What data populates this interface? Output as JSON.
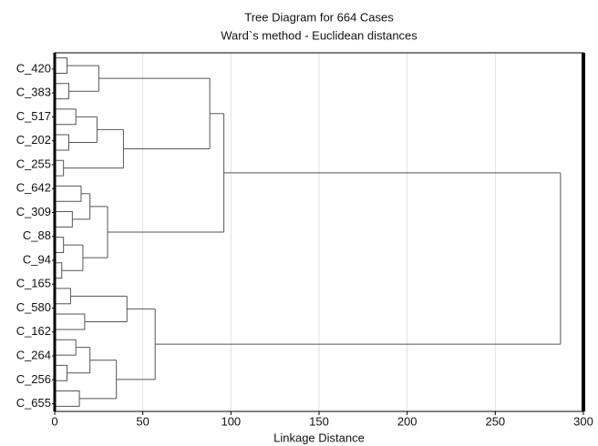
{
  "chart_data": {
    "type": "dendrogram",
    "title": "Tree Diagram for 664 Cases",
    "subtitle": "Ward`s method - Euclidean distances",
    "x_label": "Linkage Distance",
    "categories": [
      "C_420",
      "C_383",
      "C_517",
      "C_202",
      "C_255",
      "C_642",
      "C_309",
      "C_88",
      "C_94",
      "C_165",
      "C_580",
      "C_162",
      "C_264",
      "C_256",
      "C_655"
    ],
    "xlim": [
      0,
      300
    ],
    "xticks": [
      0,
      50,
      100,
      150,
      200,
      250,
      300
    ],
    "grid": true,
    "color": "#555555",
    "tree": {
      "height": 287,
      "children": [
        {
          "height": 96,
          "children": [
            {
              "height": 88,
              "children": [
                {
                  "height": 25,
                  "children": [
                    {
                      "height": 7
                    },
                    {
                      "height": 8
                    }
                  ]
                },
                {
                  "height": 39,
                  "children": [
                    {
                      "height": 24,
                      "children": [
                        {
                          "height": 12
                        },
                        {
                          "height": 8
                        }
                      ]
                    },
                    {
                      "height": 5
                    }
                  ]
                }
              ]
            },
            {
              "height": 30,
              "children": [
                {
                  "height": 20,
                  "children": [
                    {
                      "height": 15
                    },
                    {
                      "height": 10
                    }
                  ]
                },
                {
                  "height": 16,
                  "children": [
                    {
                      "height": 5
                    },
                    {
                      "height": 4
                    }
                  ]
                }
              ]
            }
          ]
        },
        {
          "height": 57,
          "children": [
            {
              "height": 41,
              "children": [
                {
                  "height": 9
                },
                {
                  "height": 17
                }
              ]
            },
            {
              "height": 35,
              "children": [
                {
                  "height": 20,
                  "children": [
                    {
                      "height": 12
                    },
                    {
                      "height": 7
                    }
                  ]
                },
                {
                  "height": 14
                }
              ]
            }
          ]
        }
      ]
    }
  }
}
